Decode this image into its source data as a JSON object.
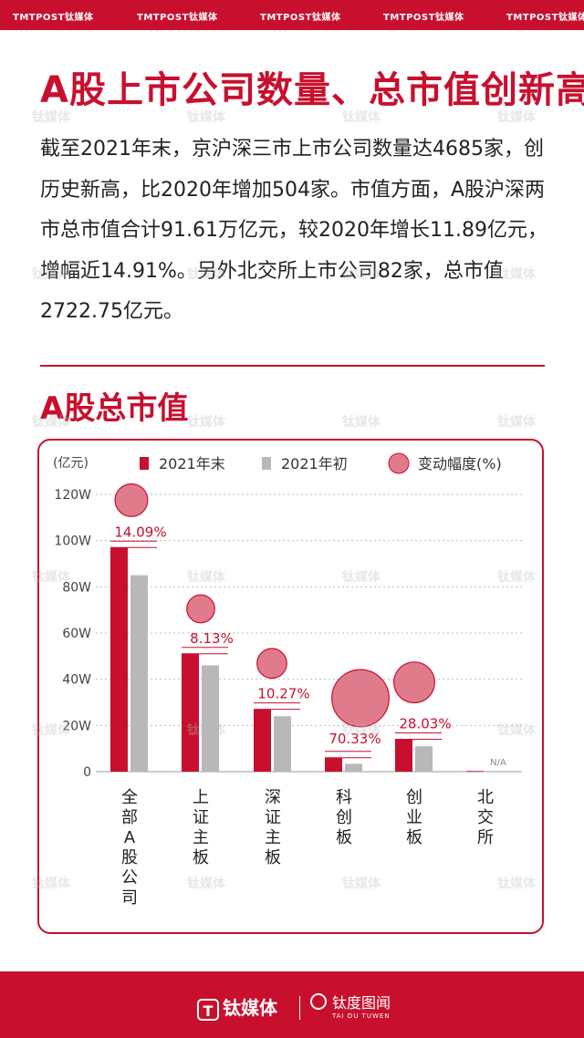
{
  "header": {
    "watermark": "TMTPOST钛媒体"
  },
  "title": "A股上市公司数量、总市值创新高",
  "paragraph": "截至2021年末，京沪深三市上市公司数量达4685家，创历史新高，比2020年增加504家。市值方面，A股沪深两市总市值合计91.61万亿元，较2020年增长11.89亿元，增幅近14.91%。另外北交所上市公司82家，总市值2722.75亿元。",
  "section_title": "A股总市值",
  "footer": {
    "logo_main": "钛媒体",
    "logo_main_icon": "T",
    "logo_sub": "钛度图闻",
    "logo_sub_en": "TAI DU TUWEN"
  },
  "watermark_text": "钛媒体",
  "colors": {
    "primary": "#c8102e",
    "secondary_bar": "#b8b8b8",
    "bubble": "#e07b8c"
  },
  "chart_data": {
    "type": "bar",
    "unit_label": "(亿元)",
    "categories": [
      "全部A股公司",
      "上证主板",
      "深证主板",
      "科创板",
      "创业板",
      "北交所"
    ],
    "series": [
      {
        "name": "2021年末",
        "values": [
          97,
          51,
          27,
          6,
          14,
          0.3
        ]
      },
      {
        "name": "2021年初",
        "values": [
          85,
          46,
          24,
          3.4,
          11,
          0
        ]
      }
    ],
    "change_series": {
      "name": "变动幅度(%)",
      "labels": [
        "14.09%",
        "8.13%",
        "10.27%",
        "70.33%",
        "28.03%",
        "N/A"
      ],
      "values": [
        14.09,
        8.13,
        10.27,
        70.33,
        28.03,
        null
      ]
    },
    "yticks": [
      "0",
      "20W",
      "40W",
      "60W",
      "80W",
      "100W",
      "120W"
    ],
    "ylim": [
      0,
      120
    ],
    "grid": true,
    "legend_position": "top"
  }
}
